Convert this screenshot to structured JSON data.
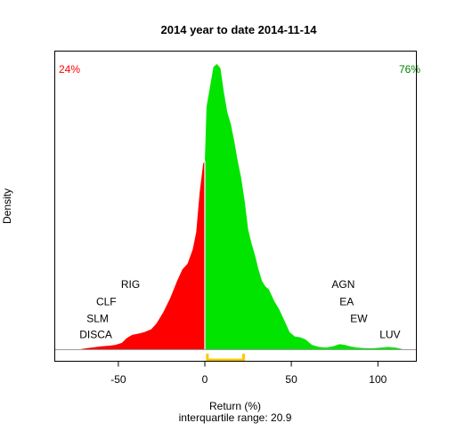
{
  "chart_data": {
    "type": "area",
    "title": "2014  year to date 2014-11-14",
    "xlabel": "Return (%)",
    "ylabel": "Density",
    "subtitle": "interquartile range: 20.9",
    "xlim": [
      -87,
      122
    ],
    "ylim": [
      0,
      1
    ],
    "x_ticks": [
      -50,
      0,
      50,
      100
    ],
    "x_tick_labels": [
      "-50",
      "0",
      "50",
      "100"
    ],
    "split_at": 0,
    "negative_share_label": "24%",
    "positive_share_label": "76%",
    "colors": {
      "negative": "#ff0000",
      "positive": "#00e400",
      "negative_label": "#ff0000",
      "positive_label": "#008000",
      "iqr": "#ffc800"
    },
    "iqr": [
      1.5,
      22.4
    ],
    "density_unit": "relative to peak",
    "density": {
      "x": [
        -72,
        -68,
        -64,
        -60,
        -56,
        -52,
        -48,
        -45,
        -42,
        -38,
        -35,
        -31,
        -28,
        -24,
        -20,
        -16,
        -13,
        -10,
        -7,
        -5,
        -3,
        -1,
        0,
        1,
        3,
        5,
        7,
        9,
        11,
        13,
        15,
        17,
        19,
        21,
        23,
        25,
        27,
        29,
        31,
        33,
        35,
        37,
        40,
        43,
        46,
        49,
        52,
        55,
        58,
        62,
        66,
        70,
        74,
        78,
        81,
        84,
        88,
        92,
        97,
        102,
        106,
        110,
        114
      ],
      "y": [
        0,
        0.004,
        0.007,
        0.01,
        0.012,
        0.015,
        0.022,
        0.04,
        0.05,
        0.055,
        0.06,
        0.07,
        0.09,
        0.13,
        0.18,
        0.24,
        0.28,
        0.3,
        0.35,
        0.41,
        0.55,
        0.65,
        0.66,
        0.85,
        0.92,
        0.99,
        1.0,
        0.985,
        0.9,
        0.83,
        0.79,
        0.73,
        0.66,
        0.6,
        0.52,
        0.42,
        0.37,
        0.33,
        0.28,
        0.24,
        0.22,
        0.21,
        0.17,
        0.14,
        0.1,
        0.06,
        0.045,
        0.042,
        0.035,
        0.015,
        0.008,
        0.006,
        0.01,
        0.018,
        0.015,
        0.01,
        0.006,
        0.004,
        0.003,
        0.006,
        0.008,
        0.006,
        0.001
      ]
    },
    "annotations": [
      {
        "text": "RIG",
        "x": -43,
        "y": 0.228
      },
      {
        "text": "CLF",
        "x": -57,
        "y": 0.166
      },
      {
        "text": "SLM",
        "x": -62,
        "y": 0.108
      },
      {
        "text": "DISCA",
        "x": -63,
        "y": 0.052
      },
      {
        "text": "AGN",
        "x": 80,
        "y": 0.228
      },
      {
        "text": "EA",
        "x": 82,
        "y": 0.166
      },
      {
        "text": "EW",
        "x": 89,
        "y": 0.108
      },
      {
        "text": "LUV",
        "x": 107,
        "y": 0.052
      }
    ]
  }
}
